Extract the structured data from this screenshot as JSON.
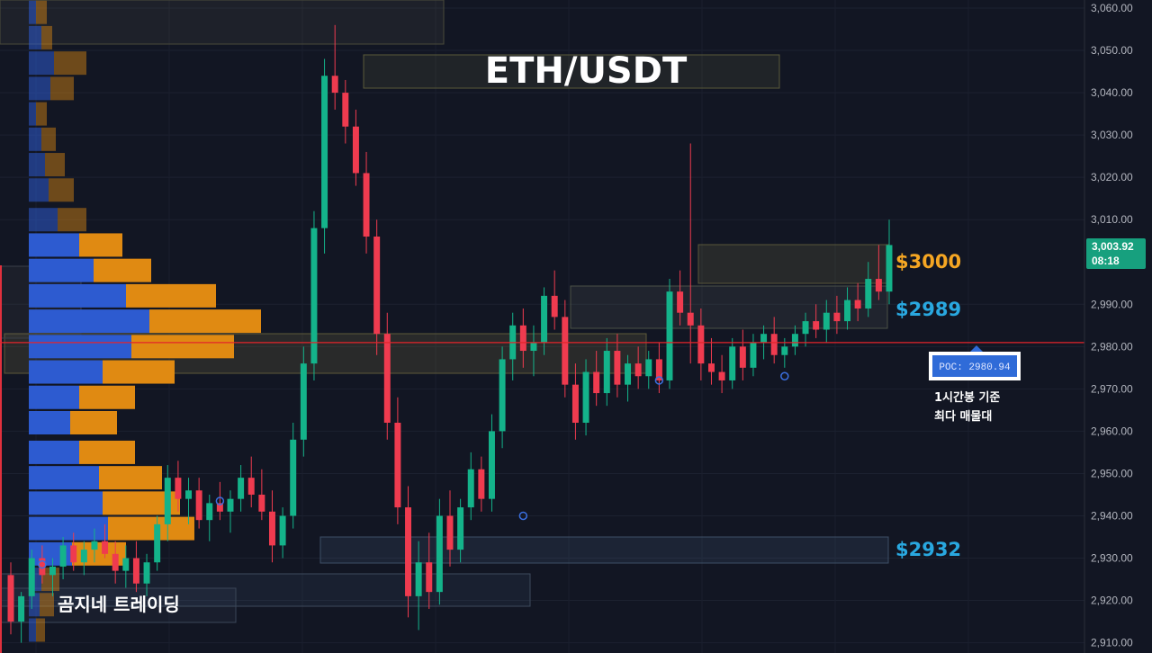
{
  "chart_data": {
    "type": "candlestick",
    "title": "ETH/USDT",
    "watermark": "곰지네 트레이딩",
    "y_axis": {
      "ticks": [
        "3,060.00",
        "3,050.00",
        "3,040.00",
        "3,030.00",
        "3,020.00",
        "3,010.00",
        "2,990.00",
        "2,980.00",
        "2,970.00",
        "2,960.00",
        "2,950.00",
        "2,940.00",
        "2,930.00",
        "2,920.00",
        "2,910.00"
      ],
      "range": [
        2908,
        3064
      ]
    },
    "current_price": {
      "value": "3,003.92",
      "countdown": "08:18"
    },
    "levels": [
      {
        "label": "$3000",
        "price": 3000,
        "color": "#f5a623"
      },
      {
        "label": "$2989",
        "price": 2989,
        "color": "#29a8e0"
      },
      {
        "label": "$2932",
        "price": 2932,
        "color": "#29a8e0"
      }
    ],
    "poc": {
      "label": "POC: 2980.94",
      "price": 2980.94,
      "note_line1": "1시간봉 기준",
      "note_line2": "최다 매물대"
    },
    "volume_profile_bins": [
      {
        "price": 3059,
        "buy": 4,
        "sell": 6
      },
      {
        "price": 3053,
        "buy": 7,
        "sell": 6
      },
      {
        "price": 3047,
        "buy": 14,
        "sell": 18
      },
      {
        "price": 3041,
        "buy": 12,
        "sell": 13
      },
      {
        "price": 3035,
        "buy": 4,
        "sell": 6
      },
      {
        "price": 3029,
        "buy": 7,
        "sell": 8
      },
      {
        "price": 3023,
        "buy": 9,
        "sell": 11
      },
      {
        "price": 3017,
        "buy": 11,
        "sell": 14
      },
      {
        "price": 3010,
        "buy": 16,
        "sell": 16
      },
      {
        "price": 3004,
        "buy": 28,
        "sell": 24
      },
      {
        "price": 2998,
        "buy": 36,
        "sell": 32
      },
      {
        "price": 2992,
        "buy": 54,
        "sell": 50
      },
      {
        "price": 2986,
        "buy": 67,
        "sell": 62
      },
      {
        "price": 2980,
        "buy": 57,
        "sell": 57
      },
      {
        "price": 2974,
        "buy": 41,
        "sell": 40
      },
      {
        "price": 2968,
        "buy": 28,
        "sell": 31
      },
      {
        "price": 2962,
        "buy": 23,
        "sell": 26
      },
      {
        "price": 2955,
        "buy": 28,
        "sell": 31
      },
      {
        "price": 2949,
        "buy": 39,
        "sell": 35
      },
      {
        "price": 2943,
        "buy": 41,
        "sell": 43
      },
      {
        "price": 2937,
        "buy": 44,
        "sell": 48
      },
      {
        "price": 2931,
        "buy": 24,
        "sell": 30
      },
      {
        "price": 2925,
        "buy": 7,
        "sell": 10
      },
      {
        "price": 2919,
        "buy": 6,
        "sell": 8
      },
      {
        "price": 2913,
        "buy": 4,
        "sell": 5
      }
    ],
    "candles": [
      {
        "o": 2926,
        "h": 2929,
        "l": 2912,
        "c": 2915
      },
      {
        "o": 2915,
        "h": 2922,
        "l": 2910,
        "c": 2921
      },
      {
        "o": 2921,
        "h": 2932,
        "l": 2918,
        "c": 2930
      },
      {
        "o": 2930,
        "h": 2933,
        "l": 2924,
        "c": 2926
      },
      {
        "o": 2926,
        "h": 2930,
        "l": 2921,
        "c": 2928
      },
      {
        "o": 2928,
        "h": 2935,
        "l": 2925,
        "c": 2933
      },
      {
        "o": 2933,
        "h": 2936,
        "l": 2927,
        "c": 2929
      },
      {
        "o": 2929,
        "h": 2934,
        "l": 2926,
        "c": 2932
      },
      {
        "o": 2932,
        "h": 2937,
        "l": 2929,
        "c": 2934
      },
      {
        "o": 2934,
        "h": 2938,
        "l": 2930,
        "c": 2931
      },
      {
        "o": 2931,
        "h": 2934,
        "l": 2924,
        "c": 2927
      },
      {
        "o": 2927,
        "h": 2933,
        "l": 2923,
        "c": 2930
      },
      {
        "o": 2930,
        "h": 2934,
        "l": 2922,
        "c": 2924
      },
      {
        "o": 2924,
        "h": 2931,
        "l": 2921,
        "c": 2929
      },
      {
        "o": 2929,
        "h": 2940,
        "l": 2927,
        "c": 2938
      },
      {
        "o": 2938,
        "h": 2952,
        "l": 2934,
        "c": 2949
      },
      {
        "o": 2949,
        "h": 2953,
        "l": 2941,
        "c": 2944
      },
      {
        "o": 2944,
        "h": 2949,
        "l": 2938,
        "c": 2946
      },
      {
        "o": 2946,
        "h": 2949,
        "l": 2937,
        "c": 2939
      },
      {
        "o": 2939,
        "h": 2945,
        "l": 2934,
        "c": 2943
      },
      {
        "o": 2943,
        "h": 2948,
        "l": 2939,
        "c": 2941
      },
      {
        "o": 2941,
        "h": 2946,
        "l": 2936,
        "c": 2944
      },
      {
        "o": 2944,
        "h": 2952,
        "l": 2941,
        "c": 2949
      },
      {
        "o": 2949,
        "h": 2954,
        "l": 2942,
        "c": 2945
      },
      {
        "o": 2945,
        "h": 2951,
        "l": 2939,
        "c": 2941
      },
      {
        "o": 2941,
        "h": 2946,
        "l": 2929,
        "c": 2933
      },
      {
        "o": 2933,
        "h": 2942,
        "l": 2930,
        "c": 2940
      },
      {
        "o": 2940,
        "h": 2962,
        "l": 2937,
        "c": 2958
      },
      {
        "o": 2958,
        "h": 2980,
        "l": 2954,
        "c": 2976
      },
      {
        "o": 2976,
        "h": 3012,
        "l": 2972,
        "c": 3008
      },
      {
        "o": 3008,
        "h": 3048,
        "l": 3002,
        "c": 3044
      },
      {
        "o": 3044,
        "h": 3056,
        "l": 3036,
        "c": 3040
      },
      {
        "o": 3040,
        "h": 3043,
        "l": 3028,
        "c": 3032
      },
      {
        "o": 3032,
        "h": 3036,
        "l": 3018,
        "c": 3021
      },
      {
        "o": 3021,
        "h": 3026,
        "l": 3002,
        "c": 3006
      },
      {
        "o": 3006,
        "h": 3010,
        "l": 2978,
        "c": 2983
      },
      {
        "o": 2983,
        "h": 2988,
        "l": 2958,
        "c": 2962
      },
      {
        "o": 2962,
        "h": 2968,
        "l": 2938,
        "c": 2942
      },
      {
        "o": 2942,
        "h": 2947,
        "l": 2916,
        "c": 2921
      },
      {
        "o": 2921,
        "h": 2934,
        "l": 2913,
        "c": 2929
      },
      {
        "o": 2929,
        "h": 2936,
        "l": 2918,
        "c": 2922
      },
      {
        "o": 2922,
        "h": 2944,
        "l": 2919,
        "c": 2940
      },
      {
        "o": 2940,
        "h": 2946,
        "l": 2928,
        "c": 2932
      },
      {
        "o": 2932,
        "h": 2944,
        "l": 2929,
        "c": 2942
      },
      {
        "o": 2942,
        "h": 2955,
        "l": 2939,
        "c": 2951
      },
      {
        "o": 2951,
        "h": 2954,
        "l": 2941,
        "c": 2944
      },
      {
        "o": 2944,
        "h": 2964,
        "l": 2941,
        "c": 2960
      },
      {
        "o": 2960,
        "h": 2980,
        "l": 2956,
        "c": 2977
      },
      {
        "o": 2977,
        "h": 2988,
        "l": 2972,
        "c": 2985
      },
      {
        "o": 2985,
        "h": 2989,
        "l": 2975,
        "c": 2979
      },
      {
        "o": 2979,
        "h": 2985,
        "l": 2973,
        "c": 2981
      },
      {
        "o": 2981,
        "h": 2994,
        "l": 2978,
        "c": 2992
      },
      {
        "o": 2992,
        "h": 2998,
        "l": 2984,
        "c": 2987
      },
      {
        "o": 2987,
        "h": 2991,
        "l": 2968,
        "c": 2971
      },
      {
        "o": 2971,
        "h": 2976,
        "l": 2958,
        "c": 2962
      },
      {
        "o": 2962,
        "h": 2977,
        "l": 2959,
        "c": 2974
      },
      {
        "o": 2974,
        "h": 2979,
        "l": 2966,
        "c": 2969
      },
      {
        "o": 2969,
        "h": 2982,
        "l": 2966,
        "c": 2979
      },
      {
        "o": 2979,
        "h": 2983,
        "l": 2968,
        "c": 2971
      },
      {
        "o": 2971,
        "h": 2978,
        "l": 2967,
        "c": 2976
      },
      {
        "o": 2976,
        "h": 2980,
        "l": 2970,
        "c": 2973
      },
      {
        "o": 2973,
        "h": 2979,
        "l": 2970,
        "c": 2977
      },
      {
        "o": 2977,
        "h": 2981,
        "l": 2969,
        "c": 2972
      },
      {
        "o": 2972,
        "h": 2996,
        "l": 2970,
        "c": 2993
      },
      {
        "o": 2993,
        "h": 2998,
        "l": 2985,
        "c": 2988
      },
      {
        "o": 2988,
        "h": 3028,
        "l": 2976,
        "c": 2985
      },
      {
        "o": 2985,
        "h": 2989,
        "l": 2972,
        "c": 2976
      },
      {
        "o": 2976,
        "h": 2982,
        "l": 2971,
        "c": 2974
      },
      {
        "o": 2974,
        "h": 2978,
        "l": 2969,
        "c": 2972
      },
      {
        "o": 2972,
        "h": 2982,
        "l": 2970,
        "c": 2980
      },
      {
        "o": 2980,
        "h": 2984,
        "l": 2972,
        "c": 2975
      },
      {
        "o": 2975,
        "h": 2983,
        "l": 2973,
        "c": 2981
      },
      {
        "o": 2981,
        "h": 2985,
        "l": 2977,
        "c": 2983
      },
      {
        "o": 2983,
        "h": 2987,
        "l": 2976,
        "c": 2978
      },
      {
        "o": 2978,
        "h": 2982,
        "l": 2975,
        "c": 2980
      },
      {
        "o": 2980,
        "h": 2985,
        "l": 2978,
        "c": 2983
      },
      {
        "o": 2983,
        "h": 2988,
        "l": 2980,
        "c": 2986
      },
      {
        "o": 2986,
        "h": 2990,
        "l": 2982,
        "c": 2984
      },
      {
        "o": 2984,
        "h": 2991,
        "l": 2981,
        "c": 2988
      },
      {
        "o": 2988,
        "h": 2992,
        "l": 2983,
        "c": 2986
      },
      {
        "o": 2986,
        "h": 2994,
        "l": 2984,
        "c": 2991
      },
      {
        "o": 2991,
        "h": 2995,
        "l": 2986,
        "c": 2989
      },
      {
        "o": 2989,
        "h": 3000,
        "l": 2987,
        "c": 2996
      },
      {
        "o": 2996,
        "h": 3004,
        "l": 2991,
        "c": 2993
      },
      {
        "o": 2993,
        "h": 3010,
        "l": 2990,
        "c": 3004
      }
    ]
  }
}
